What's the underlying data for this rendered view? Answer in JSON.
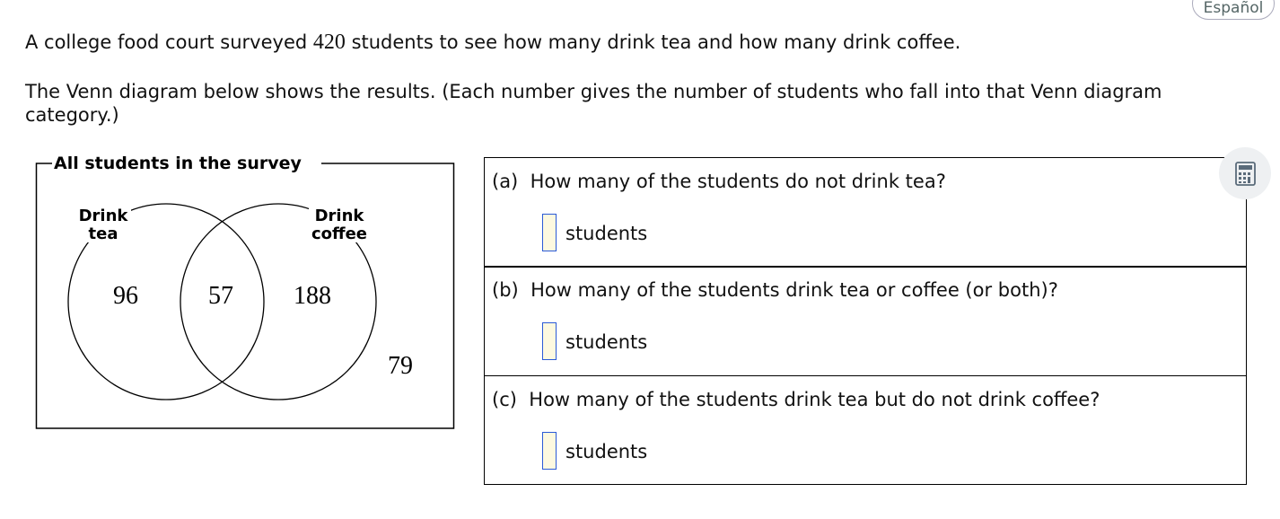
{
  "language_button": "Español",
  "calculator_icon": "calculator-icon",
  "intro": {
    "pre": "A college food court surveyed ",
    "count": "420",
    "post": " students to see how many drink tea and how many drink coffee."
  },
  "description": "The Venn diagram below shows the results. (Each number gives the number of students who fall into that Venn diagram category.)",
  "venn": {
    "title": "All students in the survey",
    "set_a_label_1": "Drink",
    "set_a_label_2": "tea",
    "set_b_label_1": "Drink",
    "set_b_label_2": "coffee",
    "only_a": "96",
    "both": "57",
    "only_b": "188",
    "neither": "79"
  },
  "questions": [
    {
      "label": "(a)",
      "text": "How many of the students do not drink tea?",
      "value": "",
      "unit": "students"
    },
    {
      "label": "(b)",
      "text": "How many of the students drink tea or coffee (or both)?",
      "value": "",
      "unit": "students"
    },
    {
      "label": "(c)",
      "text": "How many of the students drink tea but do not drink coffee?",
      "value": "",
      "unit": "students"
    }
  ]
}
